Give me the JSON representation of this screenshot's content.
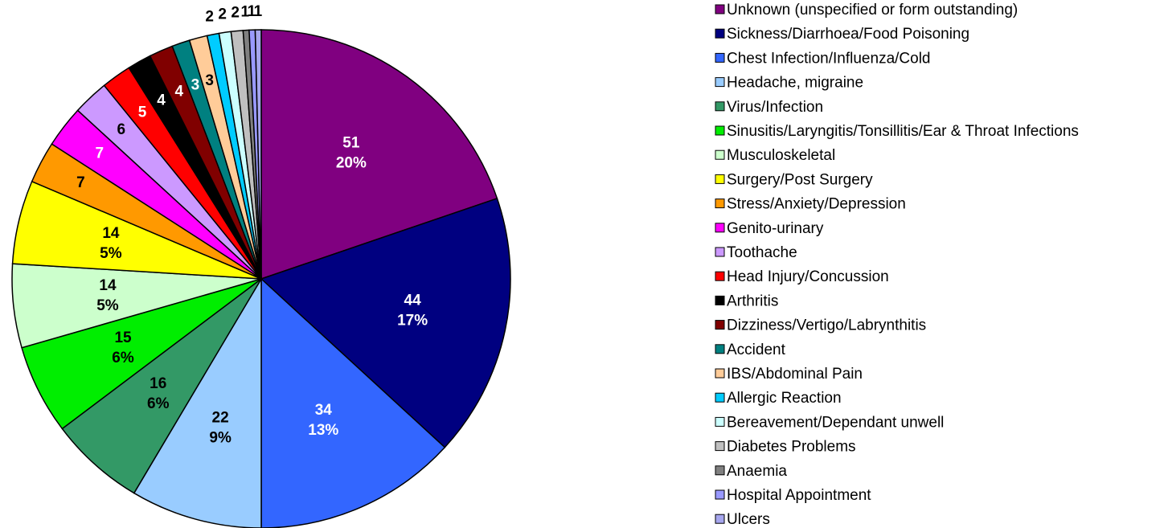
{
  "chart_data": {
    "type": "pie",
    "categories": [
      "Unknown (unspecified or form outstanding)",
      "Sickness/Diarrhoea/Food Poisoning",
      "Chest Infection/Influenza/Cold",
      "Headache, migraine",
      "Virus/Infection",
      "Sinusitis/Laryngitis/Tonsillitis/Ear & Throat Infections",
      "Musculoskeletal",
      "Surgery/Post Surgery",
      "Stress/Anxiety/Depression",
      "Genito-urinary",
      "Toothache",
      "Head Injury/Concussion",
      "Arthritis",
      "Dizziness/Vertigo/Labrynthitis",
      "Accident",
      "IBS/Abdominal Pain",
      "Allergic Reaction",
      "Bereavement/Dependant unwell",
      "Diabetes Problems",
      "Anaemia",
      "Hospital Appointment",
      "Ulcers"
    ],
    "values": [
      51,
      44,
      34,
      22,
      16,
      15,
      14,
      14,
      7,
      7,
      6,
      5,
      4,
      4,
      3,
      3,
      2,
      2,
      2,
      1,
      1,
      1
    ],
    "percent_labels": [
      "20%",
      "17%",
      "13%",
      "9%",
      "6%",
      "6%",
      "5%",
      "5%"
    ],
    "colors": [
      "#800080",
      "#000080",
      "#3366ff",
      "#99ccff",
      "#339966",
      "#00ee00",
      "#ccffcc",
      "#ffff00",
      "#ff9900",
      "#ff00ff",
      "#cc99ff",
      "#ff0000",
      "#000000",
      "#800000",
      "#008080",
      "#ffcc99",
      "#00ccff",
      "#ccffff",
      "#c0c0c0",
      "#808080",
      "#9999ff",
      "#a6a6ee"
    ],
    "legend": "right"
  }
}
